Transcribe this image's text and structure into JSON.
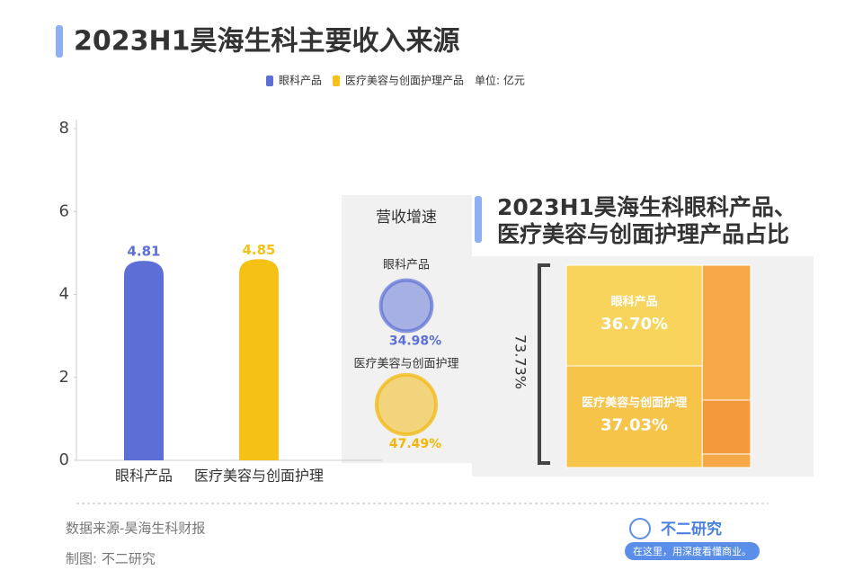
{
  "chart_data": [
    {
      "type": "bar",
      "title": "2023H1昊海生科主要收入来源",
      "unit": "单位: 亿元",
      "categories": [
        "眼科产品",
        "医疗美容与创面护理"
      ],
      "series": [
        {
          "name": "眼科产品",
          "color": "#5b6fd6",
          "values": [
            4.81,
            null
          ]
        },
        {
          "name": "医疗美容与创面护理产品",
          "color": "#f5c117",
          "values": [
            null,
            4.85
          ]
        }
      ],
      "ylim": [
        0,
        8
      ],
      "yticks": [
        0,
        2,
        4,
        6,
        8
      ]
    },
    {
      "type": "bubble",
      "title": "营收增速",
      "categories": [
        "眼科产品",
        "医疗美容与创面护理"
      ],
      "values": [
        34.98,
        47.49
      ],
      "value_labels": [
        "34.98%",
        "47.49%"
      ],
      "colors": [
        "#5b6fd6",
        "#f2b705"
      ]
    },
    {
      "type": "treemap",
      "title": [
        "2023H1昊海生科眼科产品、",
        "医疗美容与创面护理产品占比"
      ],
      "categories": [
        "眼科产品",
        "医疗美容与创面护理"
      ],
      "values": [
        36.7,
        37.03
      ],
      "value_labels": [
        "36.70%",
        "37.03%"
      ],
      "colors": [
        "#f9d45c",
        "#f7c44a"
      ],
      "total": 73.73,
      "total_label": "73.73%"
    }
  ],
  "footer": {
    "source": "数据来源-昊海生科财报",
    "maker": "制图: 不二研究",
    "brand": "不二研究",
    "slogan": "在这里，用深度看懂商业。"
  }
}
